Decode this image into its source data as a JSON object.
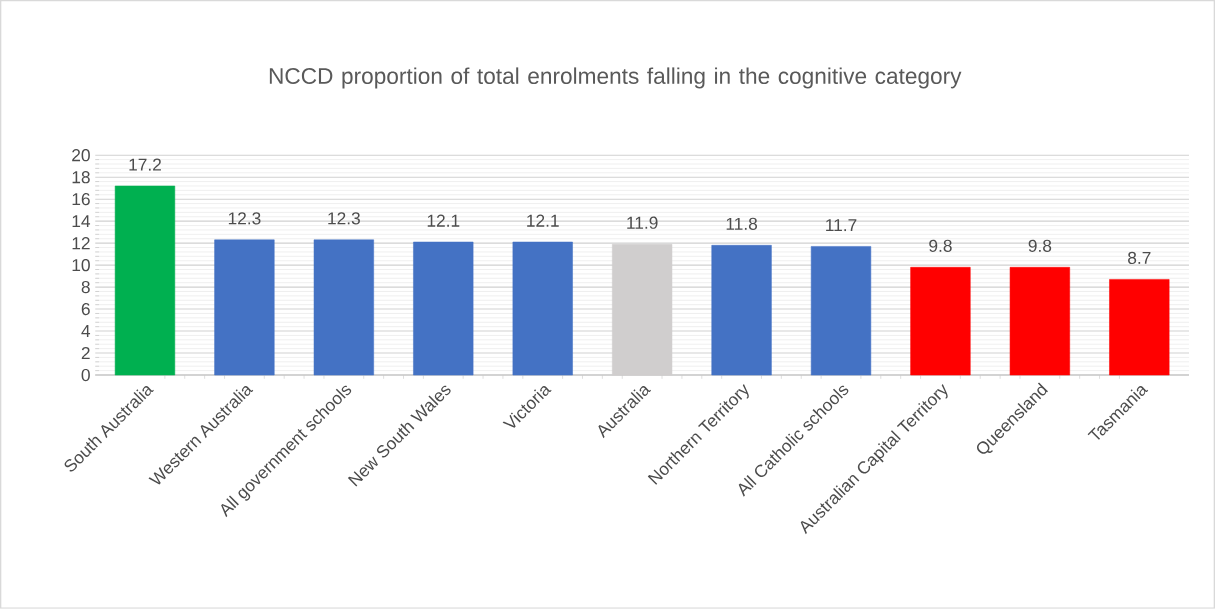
{
  "chart_data": {
    "type": "bar",
    "title": "NCCD proportion of total enrolments falling in the cognitive category",
    "categories": [
      "South Australia",
      "Western Australia",
      "All government schools",
      "New South Wales",
      "Victoria",
      "Australia",
      "Northern Territory",
      "All Catholic schools",
      "Australian Capital Territory",
      "Queensland",
      "Tasmania"
    ],
    "values": [
      17.2,
      12.3,
      12.3,
      12.1,
      12.1,
      11.9,
      11.8,
      11.7,
      9.8,
      9.8,
      8.7
    ],
    "colors": [
      "#00b050",
      "#4472c4",
      "#4472c4",
      "#4472c4",
      "#4472c4",
      "#d0cece",
      "#4472c4",
      "#4472c4",
      "#ff0000",
      "#ff0000",
      "#ff0000"
    ],
    "ylim": [
      0,
      20
    ],
    "yticks": [
      0,
      2,
      4,
      6,
      8,
      10,
      12,
      14,
      16,
      18,
      20
    ],
    "grid": "y",
    "data_labels": true
  }
}
